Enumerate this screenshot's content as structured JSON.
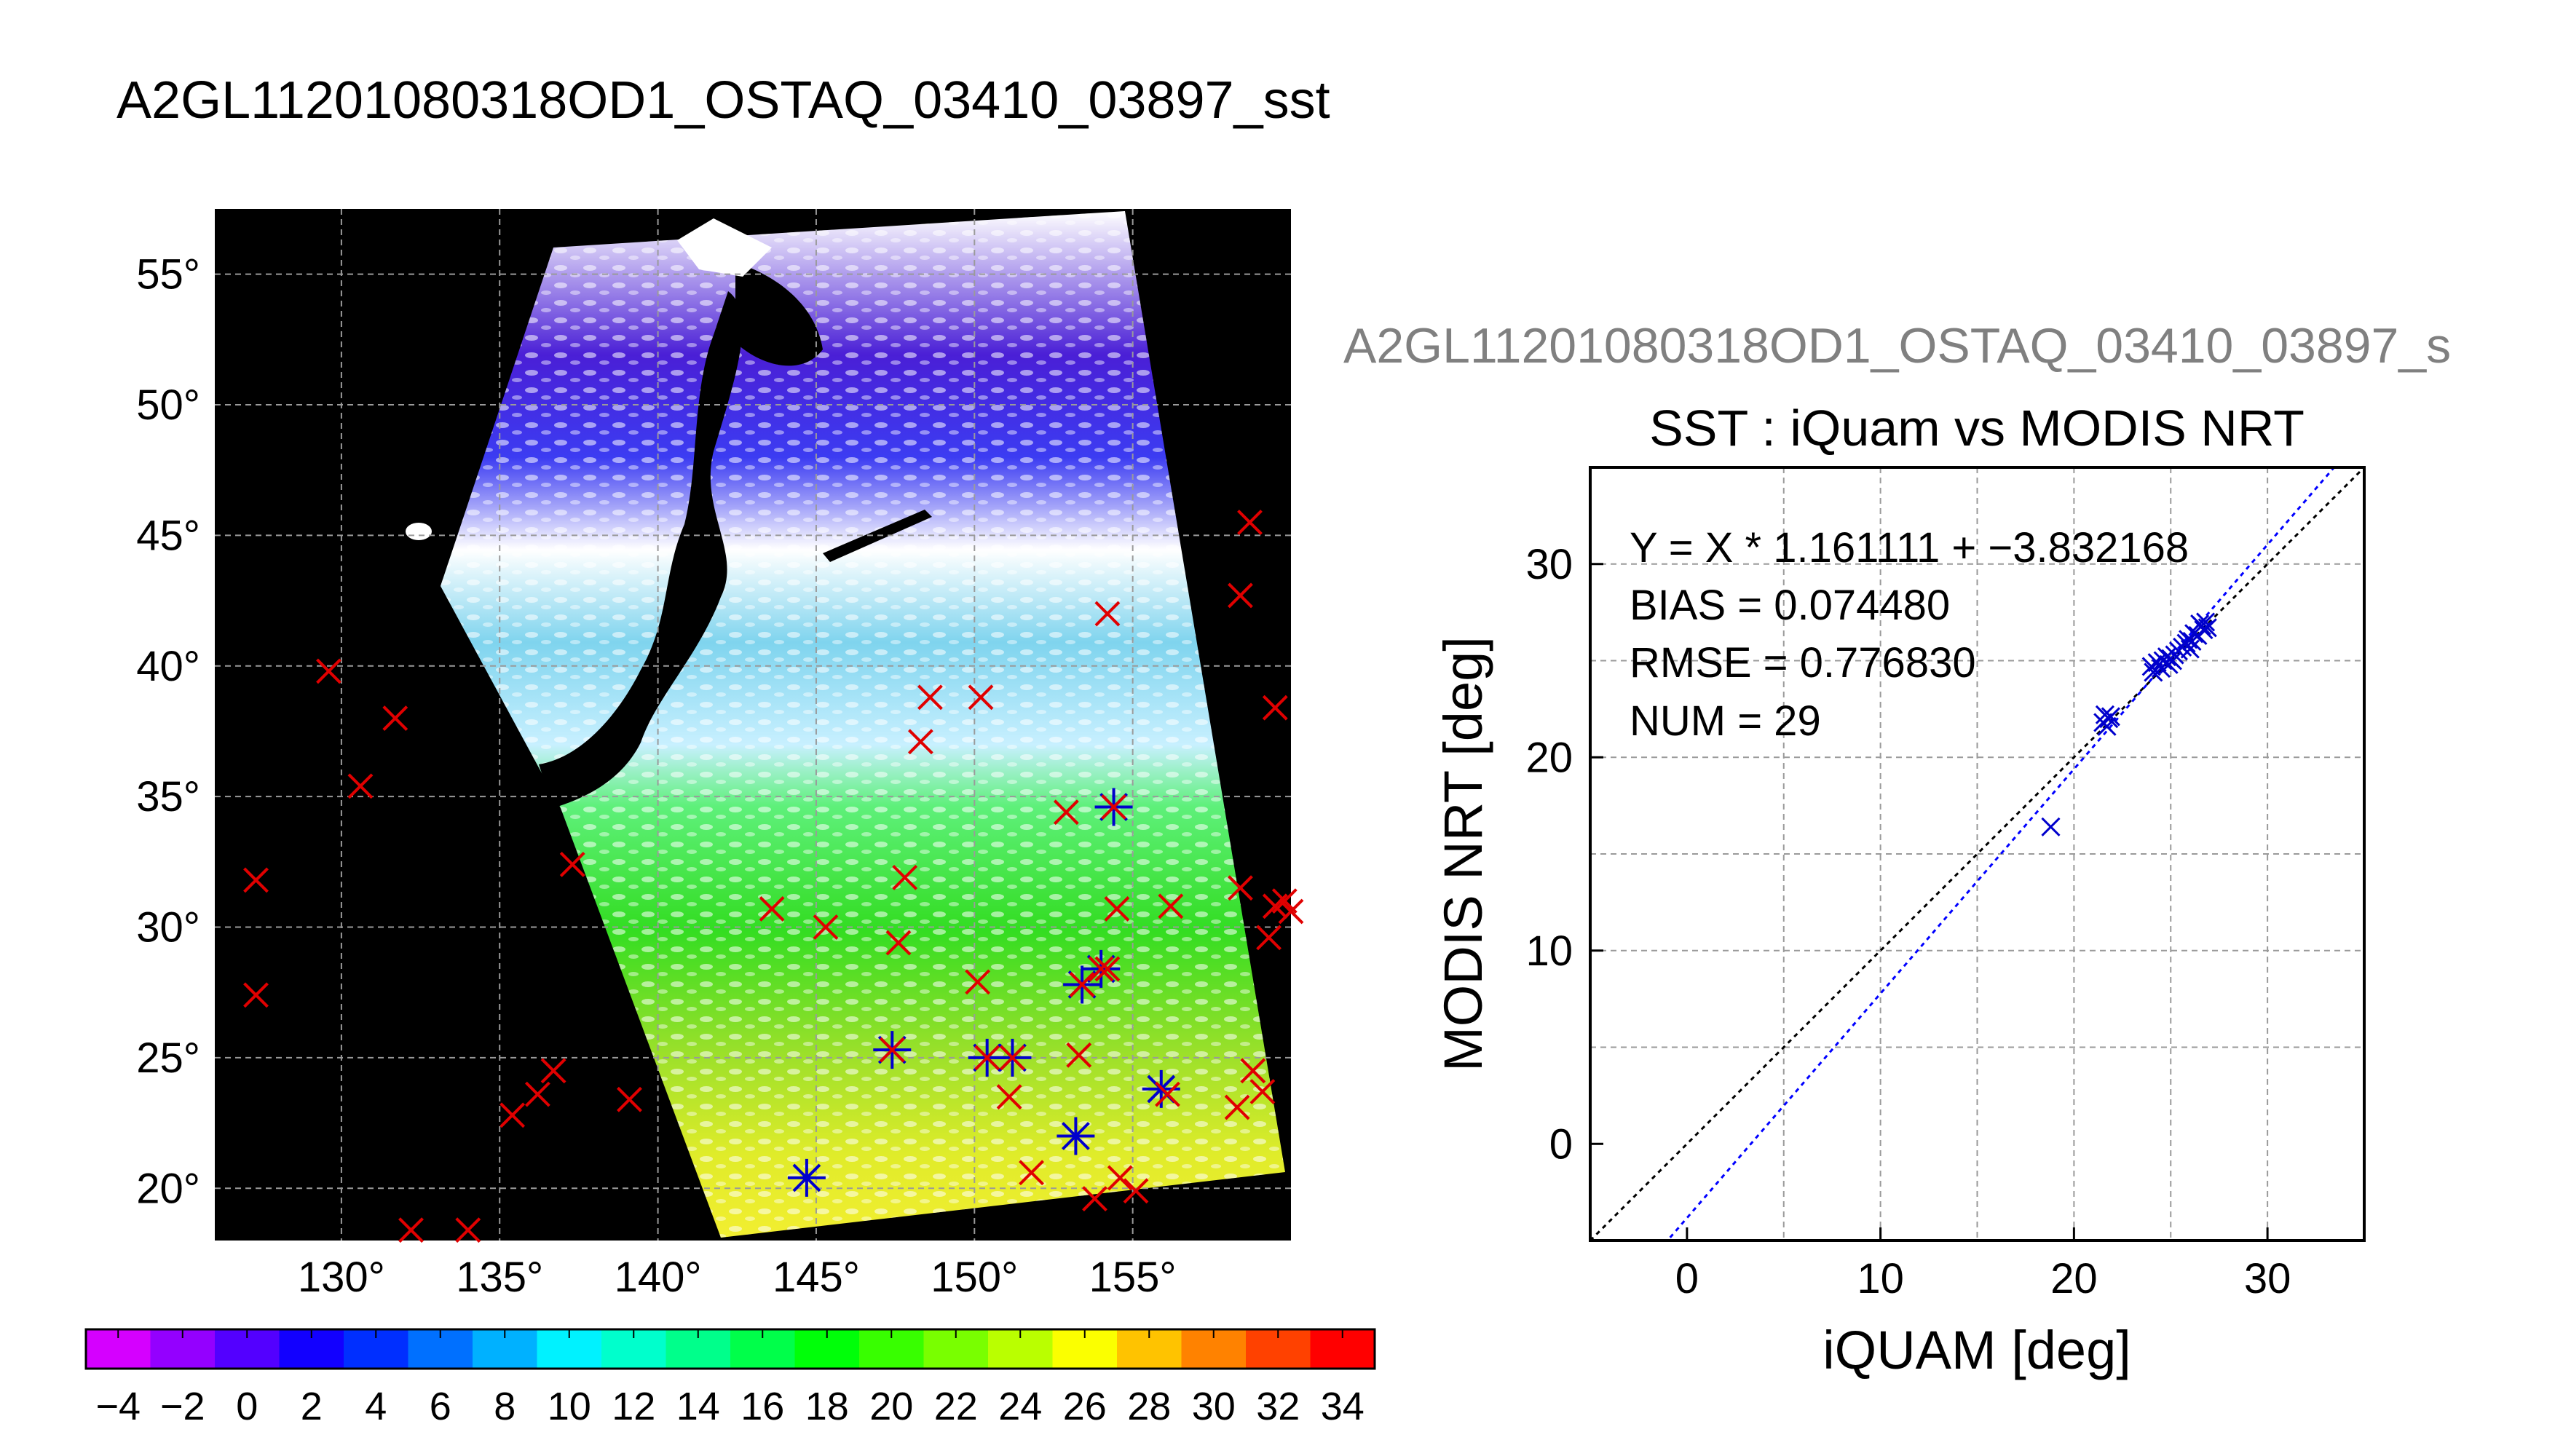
{
  "title": "A2GL11201080318OD1_OSTAQ_03410_03897_sst",
  "colors": {
    "data_marker": "#e00000",
    "matched_marker": "#0000cc",
    "fit_line": "#0000ff",
    "identity_line": "#000000",
    "land": "#000000",
    "overlay_title": "#808080"
  },
  "chart_data": [
    {
      "type": "map",
      "name": "SST swath map",
      "lon_ticks": [
        "130°",
        "135°",
        "140°",
        "145°",
        "150°",
        "155°"
      ],
      "lat_ticks": [
        "20°",
        "25°",
        "30°",
        "35°",
        "40°",
        "45°",
        "50°",
        "55°"
      ],
      "lon_range": [
        126,
        160
      ],
      "lat_range": [
        18,
        57.5
      ],
      "grid": true,
      "iquam_points": [
        [
          127.3,
          31.8
        ],
        [
          127.3,
          27.4
        ],
        [
          129.6,
          39.8
        ],
        [
          130.6,
          35.4
        ],
        [
          131.7,
          38.0
        ],
        [
          132.2,
          18.4
        ],
        [
          134.0,
          18.4
        ],
        [
          135.4,
          22.8
        ],
        [
          136.2,
          23.6
        ],
        [
          136.7,
          24.5
        ],
        [
          137.3,
          32.4
        ],
        [
          139.1,
          23.4
        ],
        [
          143.6,
          30.7
        ],
        [
          145.3,
          30.0
        ],
        [
          147.4,
          25.3
        ],
        [
          147.6,
          29.4
        ],
        [
          147.8,
          31.9
        ],
        [
          148.3,
          37.1
        ],
        [
          148.6,
          38.8
        ],
        [
          150.2,
          38.8
        ],
        [
          150.1,
          27.9
        ],
        [
          150.4,
          25.0
        ],
        [
          151.2,
          25.0
        ],
        [
          151.1,
          23.5
        ],
        [
          151.8,
          20.6
        ],
        [
          152.9,
          34.4
        ],
        [
          153.3,
          25.1
        ],
        [
          153.4,
          27.8
        ],
        [
          153.8,
          19.6
        ],
        [
          154.0,
          28.4
        ],
        [
          154.2,
          28.4
        ],
        [
          154.2,
          42.0
        ],
        [
          154.4,
          34.6
        ],
        [
          154.5,
          30.7
        ],
        [
          154.6,
          20.4
        ],
        [
          155.1,
          19.9
        ],
        [
          156.1,
          23.6
        ],
        [
          156.2,
          30.8
        ],
        [
          158.3,
          23.1
        ],
        [
          158.4,
          42.7
        ],
        [
          158.4,
          31.5
        ],
        [
          158.7,
          45.5
        ],
        [
          158.8,
          24.5
        ],
        [
          159.1,
          23.7
        ],
        [
          159.3,
          29.6
        ],
        [
          159.5,
          38.4
        ],
        [
          159.5,
          30.8
        ],
        [
          159.8,
          31.0
        ],
        [
          160.0,
          30.6
        ]
      ],
      "matched_points": [
        [
          144.7,
          20.4
        ],
        [
          147.4,
          25.3
        ],
        [
          150.4,
          25.0
        ],
        [
          151.2,
          25.0
        ],
        [
          153.2,
          22.0
        ],
        [
          153.4,
          27.8
        ],
        [
          154.0,
          28.4
        ],
        [
          154.4,
          34.6
        ],
        [
          155.9,
          23.8
        ]
      ]
    },
    {
      "type": "colorbar",
      "min": -5,
      "max": 35,
      "tick_labels": [
        "-4",
        "-2",
        "0",
        "2",
        "4",
        "6",
        "8",
        "10",
        "12",
        "14",
        "16",
        "18",
        "20",
        "22",
        "24",
        "26",
        "28",
        "30",
        "32",
        "34"
      ],
      "segments": 20
    },
    {
      "type": "scatter",
      "overlay_title": "A2GL11201080318OD1_OSTAQ_03410_03897_s",
      "title": "SST : iQuam vs MODIS NRT",
      "xlabel": "iQUAM [deg]",
      "ylabel": "MODIS NRT [deg]",
      "xlim": [
        -5,
        35
      ],
      "ylim": [
        -5,
        35
      ],
      "x_ticks": [
        0,
        10,
        20,
        30
      ],
      "y_ticks": [
        0,
        10,
        20,
        30
      ],
      "grid": true,
      "stats": [
        "Y = X * 1.161111 + −3.832168",
        "BIAS = 0.074480",
        "RMSE = 0.776830",
        "NUM = 29"
      ],
      "fit": {
        "slope": 1.161111,
        "intercept": -3.832168
      },
      "points": [
        [
          18.8,
          16.4
        ],
        [
          21.5,
          21.8
        ],
        [
          21.6,
          22.2
        ],
        [
          21.8,
          22.0
        ],
        [
          21.7,
          21.6
        ],
        [
          24.0,
          24.7
        ],
        [
          24.3,
          24.9
        ],
        [
          24.6,
          25.0
        ],
        [
          24.9,
          24.8
        ],
        [
          25.1,
          25.0
        ],
        [
          25.2,
          25.3
        ],
        [
          25.6,
          25.7
        ],
        [
          25.8,
          25.9
        ],
        [
          26.0,
          25.6
        ],
        [
          26.2,
          26.4
        ],
        [
          26.4,
          26.3
        ],
        [
          26.6,
          26.8
        ],
        [
          26.8,
          27.0
        ],
        [
          26.9,
          26.7
        ],
        [
          25.0,
          25.1
        ],
        [
          24.5,
          24.6
        ],
        [
          25.9,
          26.1
        ],
        [
          26.1,
          26.0
        ],
        [
          21.9,
          22.1
        ],
        [
          24.1,
          24.4
        ],
        [
          26.5,
          26.9
        ],
        [
          26.7,
          26.6
        ],
        [
          25.4,
          25.5
        ],
        [
          24.8,
          25.2
        ]
      ]
    }
  ]
}
